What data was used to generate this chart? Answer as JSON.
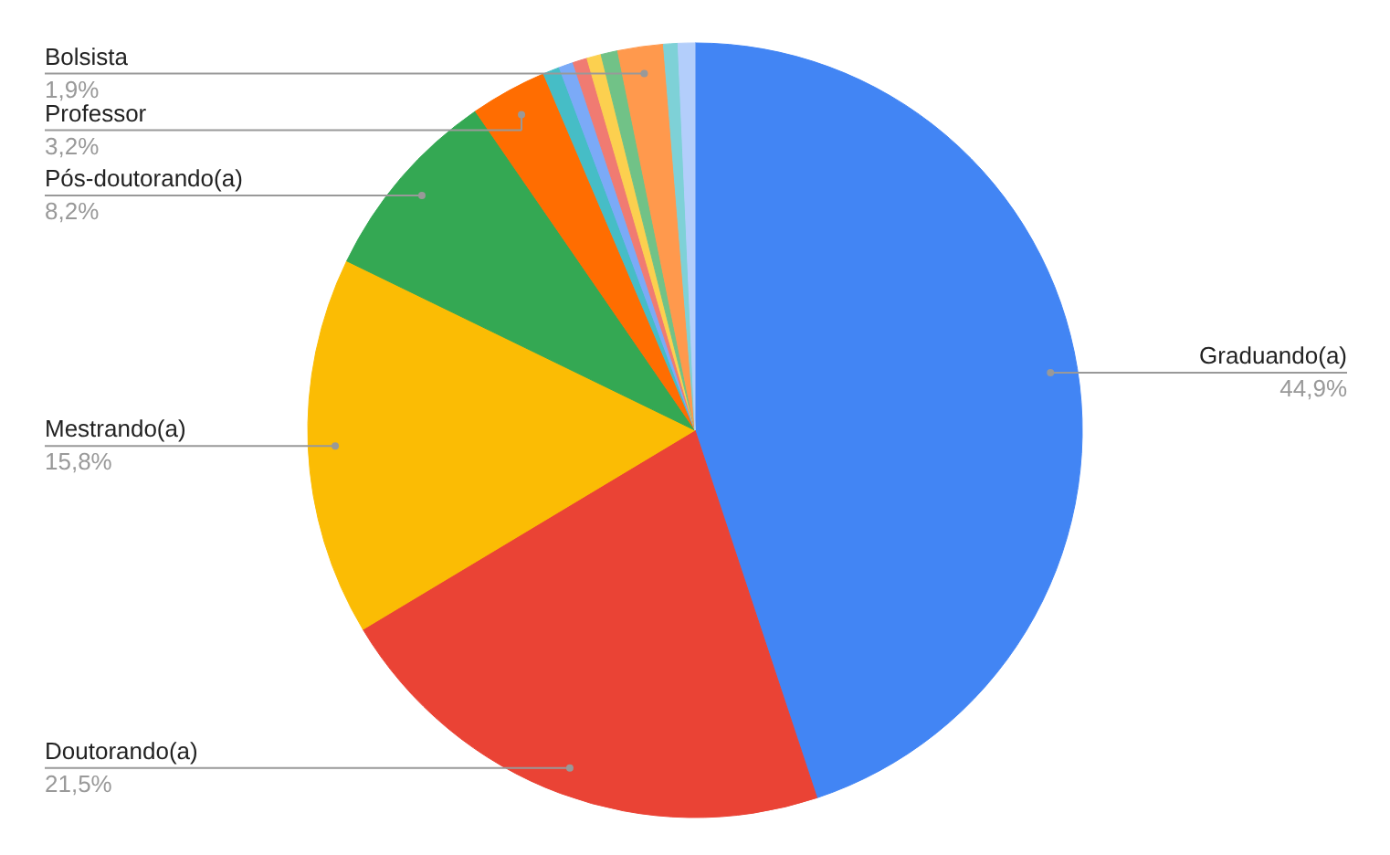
{
  "chart_data": {
    "type": "pie",
    "categories": [
      "Graduando(a)",
      "Doutorando(a)",
      "Mestrando(a)",
      "Pós-doutorando(a)",
      "Professor",
      null,
      null,
      null,
      null,
      null,
      "Bolsista",
      null,
      null
    ],
    "values": [
      44.9,
      21.5,
      15.8,
      8.2,
      3.2,
      0.7,
      0.6,
      0.6,
      0.6,
      0.7,
      1.9,
      0.6,
      0.7
    ],
    "colors": [
      "#4285f4",
      "#ea4335",
      "#fbbc04",
      "#34a853",
      "#ff6d01",
      "#46bdc6",
      "#7baaf7",
      "#f07b72",
      "#fcd04f",
      "#71c287",
      "#ff994d",
      "#7ed1d7",
      "#b3cefb"
    ],
    "value_labels": [
      "44,9%",
      "21,5%",
      "15,8%",
      "8,2%",
      "3,2%",
      null,
      null,
      null,
      null,
      null,
      "1,9%",
      null,
      null
    ]
  }
}
